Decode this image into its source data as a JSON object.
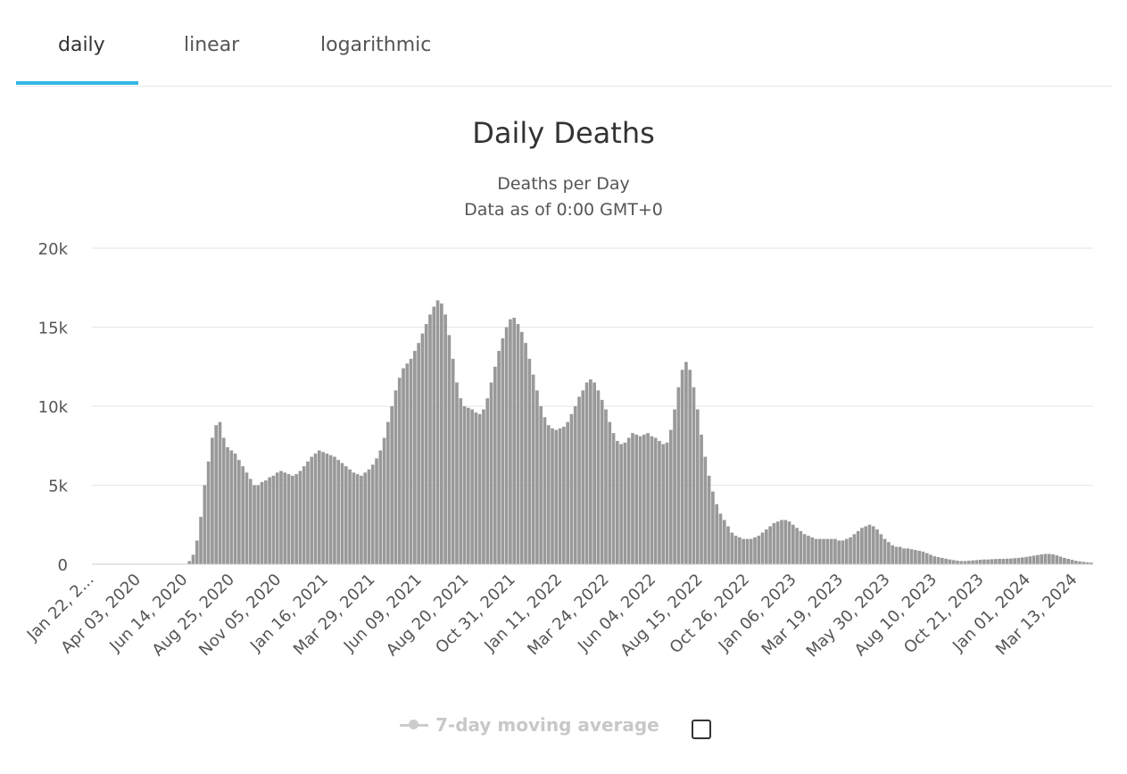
{
  "tabs": [
    {
      "label": "daily",
      "active": true
    },
    {
      "label": "linear",
      "active": false
    },
    {
      "label": "logarithmic",
      "active": false
    }
  ],
  "colors": {
    "accent": "#33b5e5",
    "bar": "#999999",
    "grid": "#e6e6e6"
  },
  "legend": {
    "label": "7-day moving average",
    "checked": false
  },
  "chart_data": {
    "type": "bar",
    "title": "Daily Deaths",
    "subtitle_lines": [
      "Deaths per Day",
      "Data as of 0:00 GMT+0"
    ],
    "ylim": [
      0,
      20000
    ],
    "y_ticks": [
      0,
      5000,
      10000,
      15000,
      20000
    ],
    "y_tick_labels": [
      "0",
      "5k",
      "10k",
      "15k",
      "20k"
    ],
    "x_tick_labels": [
      "Jan 22, 2...",
      "Apr 03, 2020",
      "Jun 14, 2020",
      "Aug 25, 2020",
      "Nov 05, 2020",
      "Jan 16, 2021",
      "Mar 29, 2021",
      "Jun 09, 2021",
      "Aug 20, 2021",
      "Oct 31, 2021",
      "Jan 11, 2022",
      "Mar 24, 2022",
      "Jun 04, 2022",
      "Aug 15, 2022",
      "Oct 26, 2022",
      "Jan 06, 2023",
      "Mar 19, 2023",
      "May 30, 2023",
      "Aug 10, 2023",
      "Oct 21, 2023",
      "Jan 01, 2024",
      "Mar 13, 2024"
    ],
    "series": [
      {
        "values": [
          0,
          0,
          0,
          0,
          0,
          0,
          0,
          0,
          0,
          0,
          0,
          0,
          0,
          0,
          0,
          0,
          0,
          0,
          0,
          0,
          0,
          0,
          0,
          0,
          0,
          200,
          600,
          1500,
          3000,
          5000,
          6500,
          8000,
          8800,
          9000,
          8000,
          7400,
          7200,
          7000,
          6600,
          6200,
          5800,
          5400,
          5000,
          5000,
          5200,
          5300,
          5500,
          5600,
          5800,
          5900,
          5800,
          5700,
          5600,
          5700,
          5900,
          6200,
          6500,
          6800,
          7000,
          7200,
          7100,
          7000,
          6900,
          6800,
          6600,
          6400,
          6200,
          6000,
          5800,
          5700,
          5600,
          5800,
          6000,
          6300,
          6700,
          7200,
          8000,
          9000,
          10000,
          11000,
          11800,
          12400,
          12700,
          13000,
          13500,
          14000,
          14600,
          15200,
          15800,
          16300,
          16700,
          16500,
          15800,
          14500,
          13000,
          11500,
          10500,
          10000,
          9900,
          9800,
          9600,
          9500,
          9800,
          10500,
          11500,
          12500,
          13500,
          14300,
          15000,
          15500,
          15600,
          15200,
          14700,
          14000,
          13000,
          12000,
          11000,
          10000,
          9300,
          8800,
          8600,
          8500,
          8600,
          8700,
          9000,
          9500,
          10000,
          10600,
          11000,
          11500,
          11700,
          11500,
          11000,
          10400,
          9800,
          9000,
          8300,
          7800,
          7600,
          7700,
          8000,
          8300,
          8200,
          8100,
          8200,
          8300,
          8100,
          8000,
          7800,
          7600,
          7700,
          8500,
          9800,
          11200,
          12300,
          12800,
          12300,
          11200,
          9800,
          8200,
          6800,
          5600,
          4600,
          3800,
          3200,
          2800,
          2400,
          2000,
          1800,
          1700,
          1600,
          1600,
          1600,
          1700,
          1800,
          2000,
          2200,
          2400,
          2600,
          2700,
          2800,
          2800,
          2700,
          2500,
          2300,
          2100,
          1900,
          1800,
          1700,
          1600,
          1600,
          1600,
          1600,
          1600,
          1600,
          1500,
          1500,
          1600,
          1700,
          1900,
          2100,
          2300,
          2400,
          2500,
          2400,
          2200,
          1900,
          1600,
          1400,
          1200,
          1100,
          1100,
          1000,
          1000,
          950,
          900,
          850,
          800,
          700,
          600,
          500,
          450,
          400,
          350,
          300,
          260,
          220,
          200,
          200,
          220,
          240,
          260,
          280,
          300,
          300,
          320,
          330,
          340,
          340,
          350,
          360,
          380,
          400,
          430,
          460,
          500,
          540,
          580,
          620,
          650,
          650,
          620,
          560,
          480,
          400,
          340,
          280,
          220,
          180,
          150,
          120,
          100
        ]
      }
    ]
  }
}
